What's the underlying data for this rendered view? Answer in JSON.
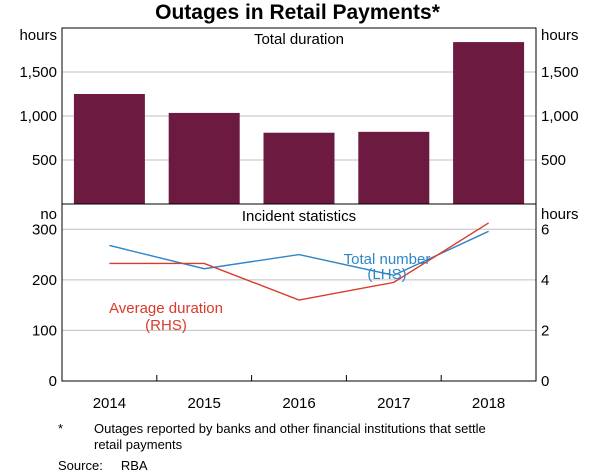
{
  "title": "Outages in Retail Payments*",
  "chart_data": [
    {
      "type": "bar",
      "title": "Total duration",
      "unit_left": "hours",
      "unit_right": "hours",
      "categories": [
        "2014",
        "2015",
        "2016",
        "2017",
        "2018"
      ],
      "values": [
        1250,
        1035,
        810,
        820,
        1840
      ],
      "ylim": [
        0,
        2000
      ],
      "yticks": [
        500,
        1000,
        1500
      ],
      "ytick_labels": [
        "500",
        "1,000",
        "1,500"
      ],
      "bar_color": "#6d1a40"
    },
    {
      "type": "line",
      "title": "Incident statistics",
      "unit_left": "no",
      "unit_right": "hours",
      "x": [
        "2014",
        "2015",
        "2016",
        "2017",
        "2018"
      ],
      "xlabels": [
        "2014",
        "2015",
        "2016",
        "2017",
        "2018"
      ],
      "ylim_left": [
        0,
        350
      ],
      "ylim_right": [
        0,
        7
      ],
      "yticks_left": [
        "0",
        "100",
        "200",
        "300"
      ],
      "yticks_right": [
        "0",
        "2",
        "4",
        "6"
      ],
      "series": [
        {
          "name": "Total number",
          "sublabel": "(LHS)",
          "axis": "left",
          "color": "#2e86c8",
          "values": [
            268,
            222,
            250,
            209,
            296
          ]
        },
        {
          "name": "Average duration",
          "sublabel": "(RHS)",
          "axis": "right",
          "color": "#d93a2b",
          "values": [
            4.65,
            4.65,
            3.2,
            3.9,
            6.25
          ]
        }
      ]
    }
  ],
  "footnote": {
    "marker": "*",
    "text": "Outages reported by banks and other financial institutions that settle retail payments"
  },
  "source": {
    "label": "Source:",
    "value": "RBA"
  }
}
